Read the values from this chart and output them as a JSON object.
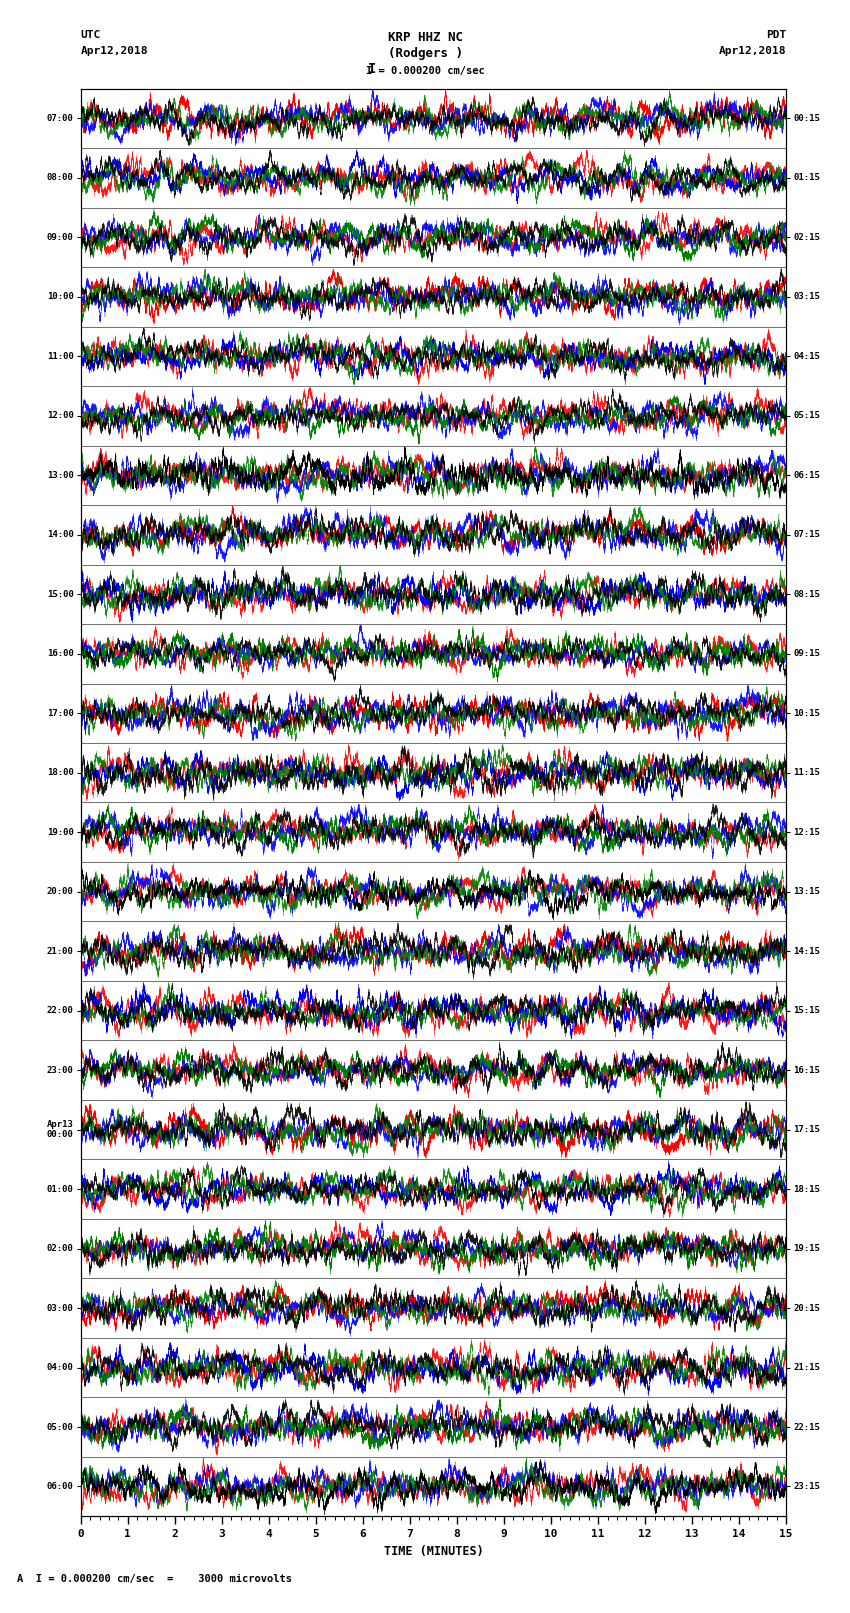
{
  "title_line1": "KRP HHZ NC",
  "title_line2": "(Rodgers )",
  "scale_label": "I = 0.000200 cm/sec",
  "utc_label": "UTC\nApr12,2018",
  "pdt_label": "PDT\nApr12,2018",
  "left_times": [
    "07:00",
    "08:00",
    "09:00",
    "10:00",
    "11:00",
    "12:00",
    "13:00",
    "14:00",
    "15:00",
    "16:00",
    "17:00",
    "18:00",
    "19:00",
    "20:00",
    "21:00",
    "22:00",
    "23:00",
    "Apr13\n00:00",
    "01:00",
    "02:00",
    "03:00",
    "04:00",
    "05:00",
    "06:00"
  ],
  "right_times": [
    "00:15",
    "01:15",
    "02:15",
    "03:15",
    "04:15",
    "05:15",
    "06:15",
    "07:15",
    "08:15",
    "09:15",
    "10:15",
    "11:15",
    "12:15",
    "13:15",
    "14:15",
    "15:15",
    "16:15",
    "17:15",
    "18:15",
    "19:15",
    "20:15",
    "21:15",
    "22:15",
    "23:15"
  ],
  "xlabel": "TIME (MINUTES)",
  "xlim": [
    0,
    15
  ],
  "xticks": [
    0,
    1,
    2,
    3,
    4,
    5,
    6,
    7,
    8,
    9,
    10,
    11,
    12,
    13,
    14,
    15
  ],
  "num_rows": 24,
  "background_color": "#ffffff",
  "colors": [
    "red",
    "blue",
    "green",
    "black"
  ],
  "footer_text": "A  I = 0.000200 cm/sec  =    3000 microvolts",
  "fig_width": 8.5,
  "fig_height": 16.13,
  "dpi": 100
}
